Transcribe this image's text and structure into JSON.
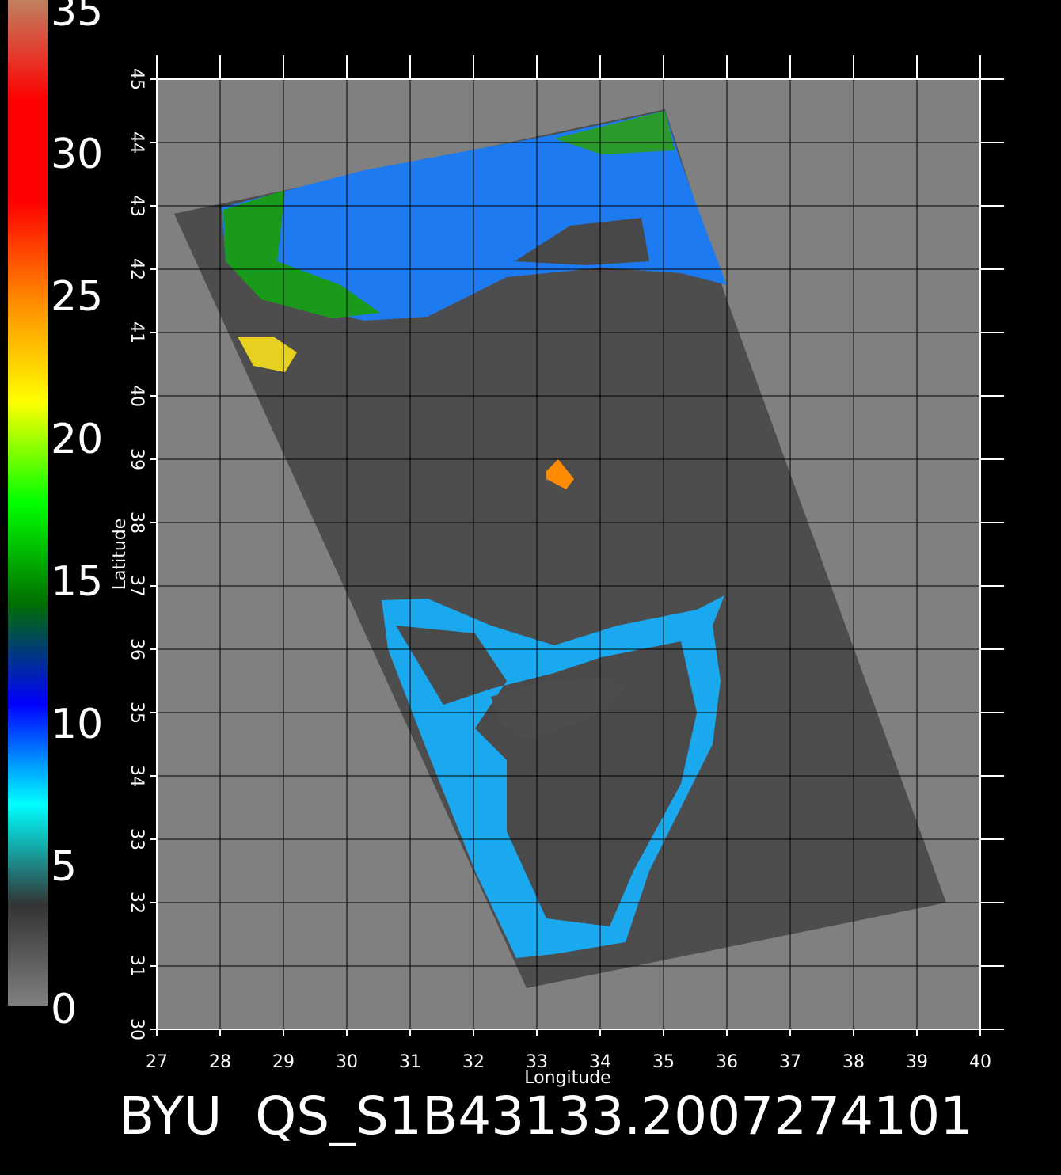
{
  "chart_data": {
    "type": "map",
    "title": "BYU  QS_S1B43133.2007274101",
    "xlabel": "Longitude",
    "ylabel": "Latitude",
    "xlim": [
      27,
      40
    ],
    "ylim": [
      30,
      45
    ],
    "xticks": [
      27,
      28,
      29,
      30,
      31,
      32,
      33,
      34,
      35,
      36,
      37,
      38,
      39,
      40
    ],
    "yticks": [
      30,
      31,
      32,
      33,
      34,
      35,
      36,
      37,
      38,
      39,
      40,
      41,
      42,
      43,
      44,
      45
    ],
    "grid": true,
    "colorbar": {
      "lim": [
        0,
        35
      ],
      "ticks": [
        0,
        5,
        10,
        15,
        20,
        25,
        30,
        35
      ],
      "colors": [
        "#808080",
        "#333333",
        "#00ffff",
        "#0000ff",
        "#007000",
        "#00ff00",
        "#ffff00",
        "#ff8c00",
        "#ff0000",
        "#ff0000",
        "#c08060"
      ]
    }
  }
}
